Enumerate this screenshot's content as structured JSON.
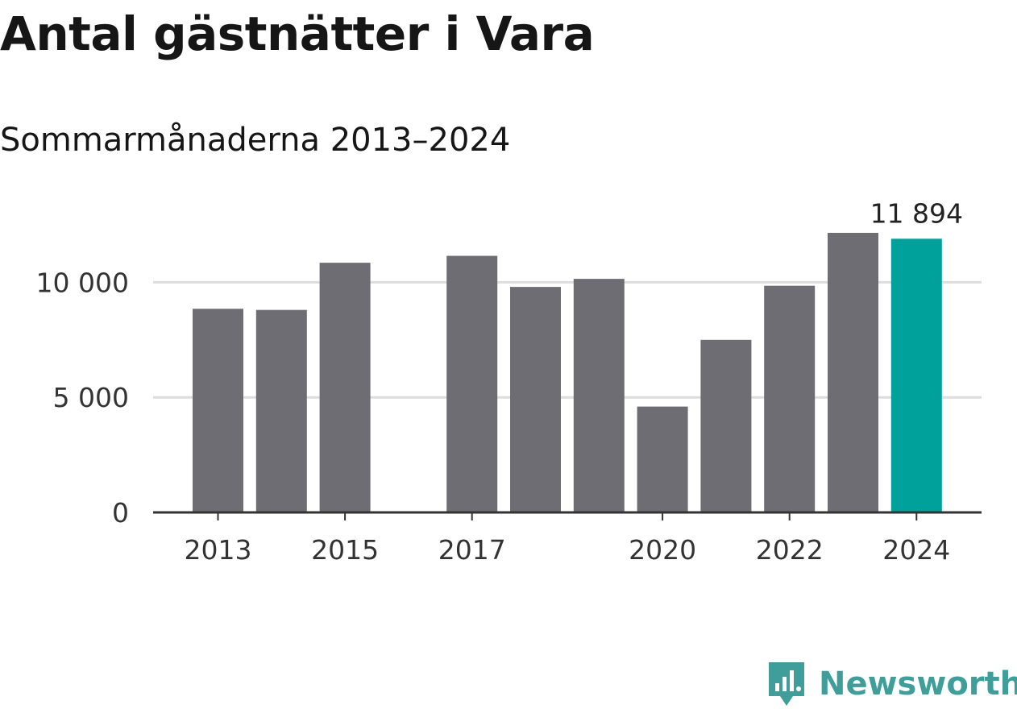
{
  "chart_data": {
    "type": "bar",
    "title": "Antal gästnätter i Vara",
    "subtitle": "Sommarmånaderna 2013–2024",
    "categories": [
      "2013",
      "2014",
      "2015",
      "2016",
      "2017",
      "2018",
      "2019",
      "2020",
      "2021",
      "2022",
      "2023",
      "2024"
    ],
    "values": [
      8850,
      8800,
      10850,
      null,
      11150,
      9800,
      10150,
      4600,
      7500,
      9850,
      12150,
      11894
    ],
    "x_tick_labels": [
      "2013",
      "2015",
      "2017",
      "2020",
      "2022",
      "2024"
    ],
    "y_ticks": [
      0,
      5000,
      10000
    ],
    "y_tick_labels": [
      "0",
      "5 000",
      "10 000"
    ],
    "ylim": [
      0,
      12500
    ],
    "grid": true,
    "highlight_index": 11,
    "highlight_label": "11 894",
    "colors": {
      "bar": "#6e6d73",
      "highlight": "#00a19a",
      "grid": "#dddddd",
      "axis": "#333333"
    }
  },
  "brand": {
    "name": "Newsworthy",
    "icon": "newsworthy-logo-icon",
    "color": "#3f9e9a"
  }
}
